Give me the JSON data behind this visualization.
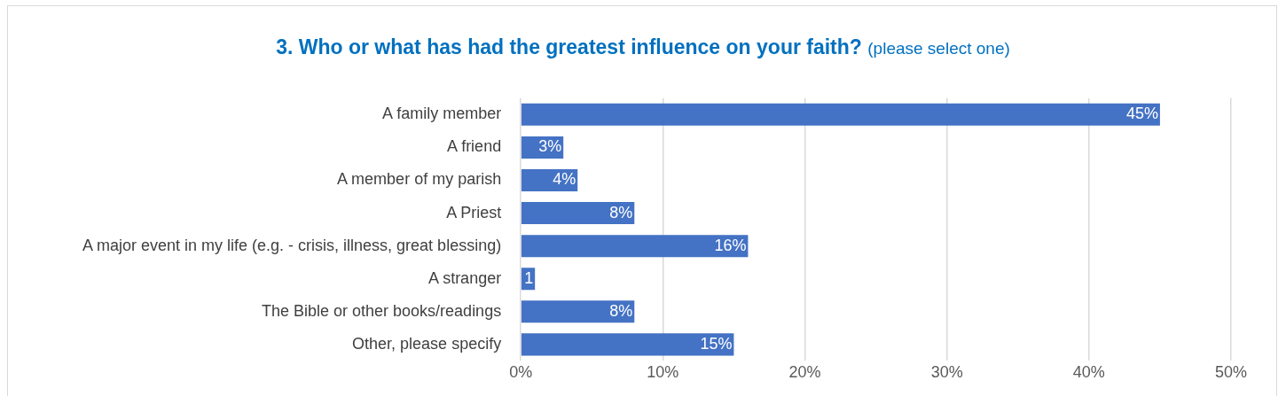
{
  "chart_data": {
    "type": "bar",
    "orientation": "horizontal",
    "title": "3. Who or what has had the greatest influence on your faith?",
    "subtitle": "(please select one)",
    "categories": [
      "A family member",
      "A friend",
      "A member of my parish",
      "A Priest",
      "A major event in my life (e.g. - crisis, illness, great blessing)",
      "A stranger",
      "The Bible or other books/readings",
      "Other, please specify"
    ],
    "values": [
      45,
      3,
      4,
      8,
      16,
      1,
      8,
      15
    ],
    "value_labels": [
      "45%",
      "3%",
      "4%",
      "8%",
      "16%",
      "1",
      "8%",
      "15%"
    ],
    "color": "#4472c4",
    "xlim": [
      0,
      50
    ],
    "xticks": [
      {
        "value": 0,
        "label": "0%"
      },
      {
        "value": 10,
        "label": "10%"
      },
      {
        "value": 20,
        "label": "20%"
      },
      {
        "value": 30,
        "label": "30%"
      },
      {
        "value": 40,
        "label": "40%"
      },
      {
        "value": 50,
        "label": "50%"
      }
    ],
    "grid": "x",
    "legend": false
  }
}
